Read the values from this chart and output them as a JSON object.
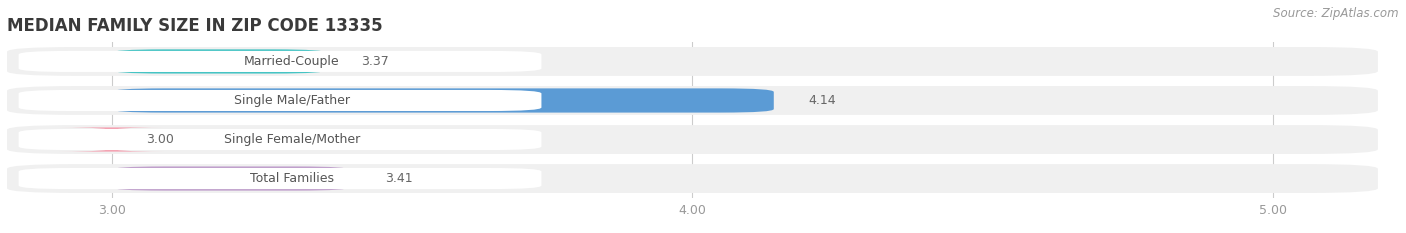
{
  "title": "MEDIAN FAMILY SIZE IN ZIP CODE 13335",
  "source": "Source: ZipAtlas.com",
  "categories": [
    "Married-Couple",
    "Single Male/Father",
    "Single Female/Mother",
    "Total Families"
  ],
  "values": [
    3.37,
    4.14,
    3.0,
    3.41
  ],
  "bar_colors": [
    "#45C4C4",
    "#5B9BD5",
    "#F4A0B0",
    "#C0A0CC"
  ],
  "xlim_left": 2.82,
  "xlim_right": 5.18,
  "xmin": 3.0,
  "xticks": [
    3.0,
    4.0,
    5.0
  ],
  "xtick_labels": [
    "3.00",
    "4.00",
    "5.00"
  ],
  "background_color": "#ffffff",
  "row_bg_color": "#f0f0f0",
  "bar_bg_color": "#e8e8e8",
  "title_fontsize": 12,
  "label_fontsize": 9,
  "value_fontsize": 9,
  "source_fontsize": 8.5,
  "tick_fontsize": 9,
  "title_color": "#3a3a3a",
  "label_color": "#555555",
  "value_color": "#666666",
  "source_color": "#999999",
  "tick_color": "#999999"
}
